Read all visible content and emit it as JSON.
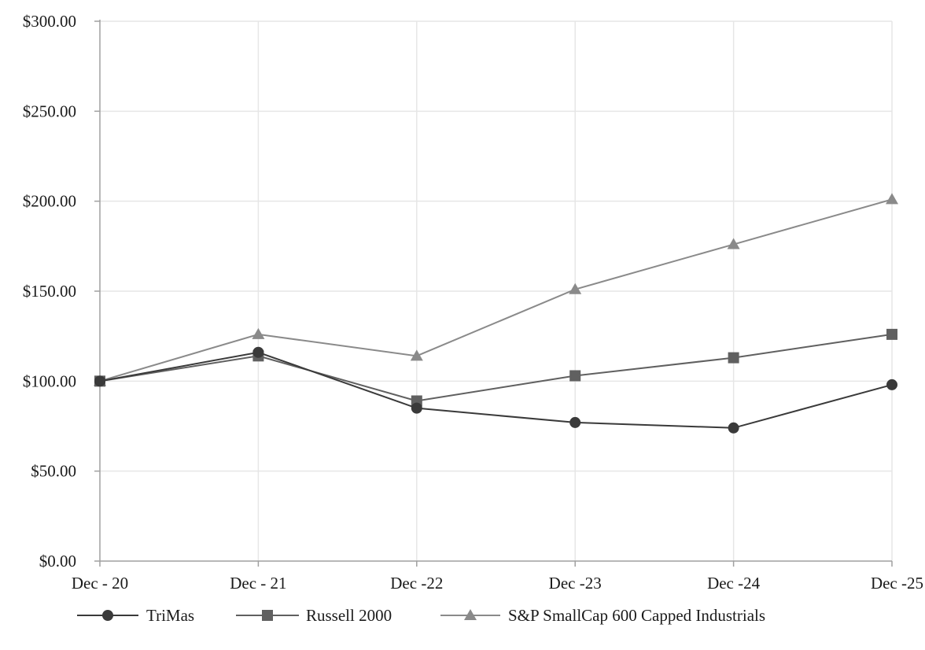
{
  "chart_data": {
    "type": "line",
    "title": "",
    "xlabel": "",
    "ylabel": "",
    "categories": [
      "Dec - 20",
      "Dec - 21",
      "Dec -22",
      "Dec -23",
      "Dec -24",
      "Dec -25"
    ],
    "ylim": [
      0,
      300
    ],
    "yticks": [
      0,
      50,
      100,
      150,
      200,
      250,
      300
    ],
    "ytick_labels": [
      "$0.00",
      "$50.00",
      "$100.00",
      "$150.00",
      "$200.00",
      "$250.00",
      "$300.00"
    ],
    "grid": true,
    "legend_position": "bottom",
    "series": [
      {
        "name": "TriMas",
        "marker": "circle",
        "color": "#3a3a3a",
        "values": [
          100,
          116,
          85,
          77,
          74,
          98
        ]
      },
      {
        "name": "Russell 2000",
        "marker": "square",
        "color": "#606060",
        "values": [
          100,
          114,
          89,
          103,
          113,
          126
        ]
      },
      {
        "name": "S&P SmallCap 600 Capped Industrials",
        "marker": "triangle",
        "color": "#8a8a8a",
        "values": [
          100,
          126,
          114,
          151,
          176,
          201
        ]
      }
    ]
  }
}
